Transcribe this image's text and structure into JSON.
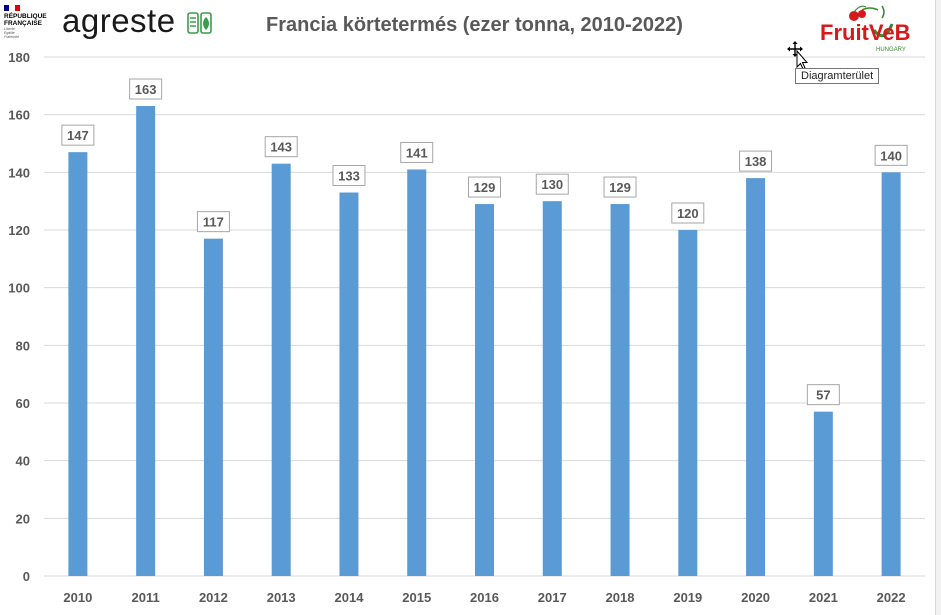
{
  "chart_data": {
    "type": "bar",
    "title": "Francia körtetermés (ezer tonna, 2010-2022)",
    "categories": [
      "2010",
      "2011",
      "2012",
      "2013",
      "2014",
      "2015",
      "2016",
      "2017",
      "2018",
      "2019",
      "2020",
      "2021",
      "2022"
    ],
    "series": [
      {
        "values": [
          147,
          163,
          117,
          143,
          133,
          141,
          129,
          130,
          129,
          120,
          138,
          57,
          140
        ]
      }
    ],
    "ylim": [
      0,
      180
    ],
    "yticks": [
      0,
      20,
      40,
      60,
      80,
      100,
      120,
      140,
      160,
      180
    ],
    "xlabel": "",
    "ylabel": "",
    "grid": true,
    "data_labels": true,
    "bar_color": "#5b9bd5"
  },
  "logos": {
    "republique_line1": "RÉPUBLIQUE",
    "republique_line2": "FRANÇAISE",
    "republique_motto1": "Liberté",
    "republique_motto2": "Égalité",
    "republique_motto3": "Fraternité",
    "agreste": "agreste",
    "fruitveb": "FruitVeB",
    "fruitveb_sub": "HUNGARY"
  },
  "tooltip": {
    "text": "Diagramterület"
  },
  "colors": {
    "grid": "#d9d9d9",
    "axis_text": "#595959",
    "title": "#595959",
    "label_border": "#a6a6a6"
  }
}
